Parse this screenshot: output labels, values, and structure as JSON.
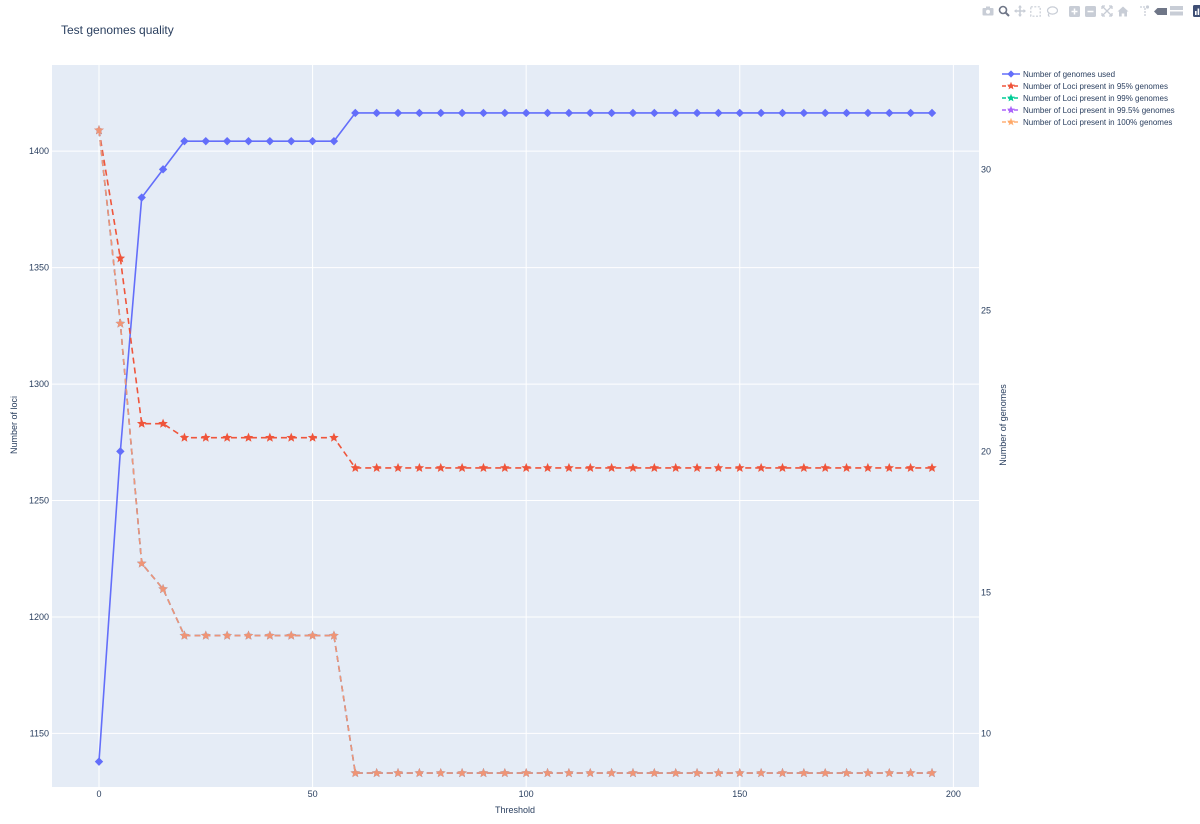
{
  "chart_data": {
    "type": "line",
    "title": "Test genomes quality",
    "xlabel": "Threshold",
    "ylabel": "Number of loci",
    "y2label": "Number of genomes",
    "xlim": [
      -11,
      206
    ],
    "ylim": [
      1127,
      1437
    ],
    "y2lim": [
      8.1,
      33.7
    ],
    "xticks": [
      0,
      50,
      100,
      150,
      200
    ],
    "yticks": [
      1150,
      1200,
      1250,
      1300,
      1350,
      1400
    ],
    "y2ticks": [
      10,
      15,
      20,
      25,
      30
    ],
    "grid": true,
    "legend_position": "top-right",
    "x": [
      0,
      5,
      10,
      15,
      20,
      25,
      30,
      35,
      40,
      45,
      50,
      55,
      60,
      65,
      70,
      75,
      80,
      85,
      90,
      95,
      100,
      105,
      110,
      115,
      120,
      125,
      130,
      135,
      140,
      145,
      150,
      155,
      160,
      165,
      170,
      175,
      180,
      185,
      190,
      195
    ],
    "series": [
      {
        "name": "Number of genomes used",
        "axis": "y2",
        "color": "#636efa",
        "dash": "solid",
        "marker": "diamond",
        "values": [
          9,
          20.0,
          29.0,
          30.0,
          31.0,
          31.0,
          31.0,
          31.0,
          31.0,
          31.0,
          31.0,
          31.0,
          32,
          32,
          32,
          32,
          32,
          32,
          32,
          32,
          32,
          32,
          32,
          32,
          32,
          32,
          32,
          32,
          32,
          32,
          32,
          32,
          32,
          32,
          32,
          32,
          32,
          32,
          32,
          32
        ]
      },
      {
        "name": "Number of Loci present in 95% genomes",
        "axis": "y",
        "color": "#EF553B",
        "dash": "dash",
        "marker": "star",
        "values": [
          1409,
          1354,
          1283,
          1283,
          1277,
          1277,
          1277,
          1277,
          1277,
          1277,
          1277,
          1277,
          1264,
          1264,
          1264,
          1264,
          1264,
          1264,
          1264,
          1264,
          1264,
          1264,
          1264,
          1264,
          1264,
          1264,
          1264,
          1264,
          1264,
          1264,
          1264,
          1264,
          1264,
          1264,
          1264,
          1264,
          1264,
          1264,
          1264,
          1264
        ]
      },
      {
        "name": "Number of Loci present in 99% genomes",
        "axis": "y",
        "color": "#00cc96",
        "dash": "dash",
        "marker": "star",
        "values": [
          1409,
          1326,
          1223,
          1212,
          1192,
          1192,
          1192,
          1192,
          1192,
          1192,
          1192,
          1192,
          1133,
          1133,
          1133,
          1133,
          1133,
          1133,
          1133,
          1133,
          1133,
          1133,
          1133,
          1133,
          1133,
          1133,
          1133,
          1133,
          1133,
          1133,
          1133,
          1133,
          1133,
          1133,
          1133,
          1133,
          1133,
          1133,
          1133,
          1133
        ]
      },
      {
        "name": "Number of Loci present in 99.5% genomes",
        "axis": "y",
        "color": "#ab63fa",
        "dash": "dash",
        "marker": "star",
        "values": [
          1409,
          1326,
          1223,
          1212,
          1192,
          1192,
          1192,
          1192,
          1192,
          1192,
          1192,
          1192,
          1133,
          1133,
          1133,
          1133,
          1133,
          1133,
          1133,
          1133,
          1133,
          1133,
          1133,
          1133,
          1133,
          1133,
          1133,
          1133,
          1133,
          1133,
          1133,
          1133,
          1133,
          1133,
          1133,
          1133,
          1133,
          1133,
          1133,
          1133
        ]
      },
      {
        "name": "Number of Loci present in 100% genomes",
        "axis": "y",
        "color": "#FFA15A",
        "dash": "dash",
        "marker": "star",
        "opacity": 0.82,
        "values": [
          1409,
          1326,
          1223,
          1212,
          1192,
          1192,
          1192,
          1192,
          1192,
          1192,
          1192,
          1192,
          1133,
          1133,
          1133,
          1133,
          1133,
          1133,
          1133,
          1133,
          1133,
          1133,
          1133,
          1133,
          1133,
          1133,
          1133,
          1133,
          1133,
          1133,
          1133,
          1133,
          1133,
          1133,
          1133,
          1133,
          1133,
          1133,
          1133,
          1133
        ]
      }
    ]
  },
  "modebar": [
    "camera-icon",
    "zoom-icon",
    "pan-icon",
    "box-select-icon",
    "lasso-icon",
    "zoom-in-icon",
    "zoom-out-icon",
    "autoscale-icon",
    "reset-axes-icon",
    "spike-lines-icon",
    "hover-closest-icon",
    "hover-compare-icon",
    "plotly-logo-icon"
  ]
}
